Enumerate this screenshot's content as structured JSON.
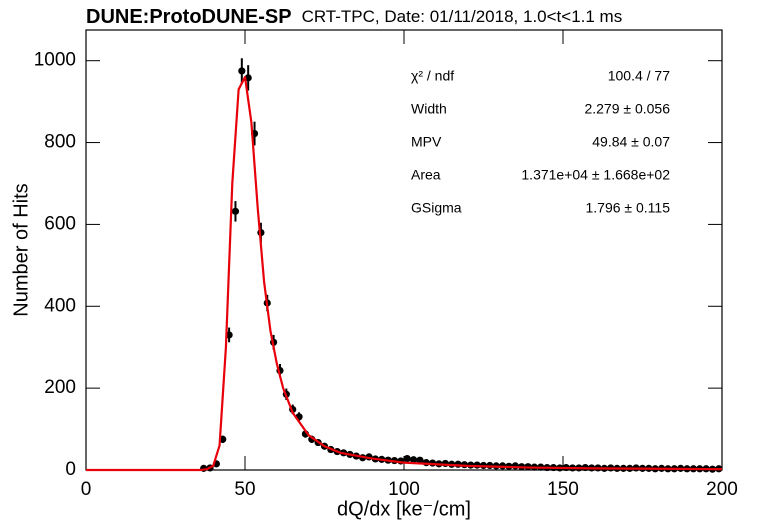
{
  "chart_data": {
    "type": "scatter",
    "title": "DUNE:ProtoDUNE-SP",
    "subtitle": "CRT-TPC, Date: 01/11/2018, 1.0<t<1.1 ms",
    "x_label": "dQ/dx [ke⁻/cm]",
    "y_label": "Number of Hits",
    "xlim": [
      0,
      200
    ],
    "ylim": [
      0,
      1075
    ],
    "xticks": [
      0,
      50,
      100,
      150,
      200
    ],
    "yticks": [
      0,
      200,
      400,
      600,
      800,
      1000
    ],
    "points": {
      "color": "#000000",
      "x": [
        37,
        39,
        41,
        43,
        45,
        47,
        49,
        51,
        53,
        55,
        57,
        59,
        61,
        63,
        65,
        67,
        69,
        71,
        73,
        75,
        77,
        79,
        81,
        83,
        85,
        87,
        89,
        91,
        93,
        95,
        97,
        99,
        101,
        103,
        105,
        107,
        109,
        111,
        113,
        115,
        117,
        119,
        121,
        123,
        125,
        127,
        129,
        131,
        133,
        135,
        137,
        139,
        141,
        143,
        145,
        147,
        149,
        151,
        153,
        155,
        157,
        159,
        161,
        163,
        165,
        167,
        169,
        171,
        173,
        175,
        177,
        179,
        181,
        183,
        185,
        187,
        189,
        191,
        193,
        195,
        197,
        199
      ],
      "values": [
        4,
        5,
        15,
        75,
        330,
        632,
        975,
        958,
        822,
        580,
        408,
        312,
        243,
        185,
        148,
        130,
        88,
        75,
        67,
        58,
        50,
        45,
        42,
        38,
        34,
        30,
        32,
        27,
        26,
        24,
        23,
        22,
        28,
        25,
        24,
        18,
        17,
        15,
        16,
        14,
        14,
        13,
        12,
        12,
        11,
        11,
        10,
        10,
        9,
        10,
        8,
        8,
        7,
        7,
        6,
        6,
        5,
        6,
        5,
        5,
        6,
        5,
        5,
        4,
        5,
        4,
        4,
        4,
        5,
        4,
        4,
        3,
        4,
        3,
        3,
        4,
        3,
        3,
        3,
        3,
        2,
        3
      ],
      "errors": [
        2,
        2,
        4,
        9,
        18,
        25,
        31,
        31,
        29,
        24,
        20,
        18,
        16,
        14,
        12,
        11,
        9,
        9,
        8,
        8,
        7,
        7,
        6,
        6,
        6,
        5,
        6,
        5,
        5,
        5,
        5,
        5,
        5,
        5,
        5,
        4,
        4,
        4,
        4,
        4,
        4,
        4,
        3,
        3,
        3,
        3,
        3,
        3,
        3,
        3,
        3,
        3,
        3,
        3,
        2,
        2,
        2,
        2,
        2,
        2,
        2,
        2,
        2,
        2,
        2,
        2,
        2,
        2,
        2,
        2,
        2,
        2,
        2,
        2,
        2,
        2,
        2,
        2,
        2,
        2,
        1,
        2
      ]
    },
    "fit": {
      "color": "#e8000b",
      "x": [
        0,
        36,
        38,
        40,
        42,
        44,
        46,
        48,
        50,
        52,
        54,
        56,
        58,
        60,
        62,
        65,
        70,
        75,
        80,
        90,
        100,
        120,
        140,
        160,
        180,
        200
      ],
      "values": [
        0,
        0,
        2,
        10,
        60,
        300,
        700,
        930,
        960,
        850,
        640,
        460,
        340,
        260,
        200,
        140,
        85,
        58,
        42,
        28,
        18,
        10,
        6,
        4,
        3,
        2
      ]
    },
    "stats": [
      {
        "label": "χ² / ndf",
        "value": "100.4 / 77"
      },
      {
        "label": "Width",
        "value": "2.279 ± 0.056"
      },
      {
        "label": "MPV",
        "value": "49.84 ± 0.07"
      },
      {
        "label": "Area",
        "value": "1.371e+04 ± 1.668e+02"
      },
      {
        "label": "GSigma",
        "value": "1.796 ± 0.115"
      }
    ]
  }
}
